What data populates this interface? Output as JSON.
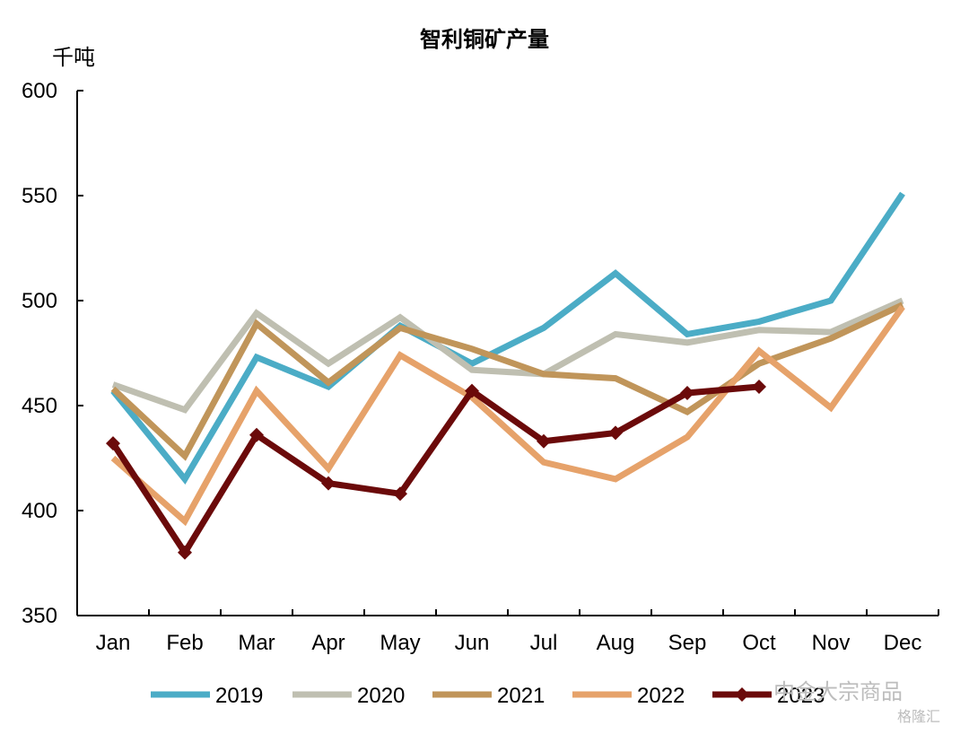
{
  "chart_data": {
    "type": "line",
    "title": "智利铜矿产量",
    "ylabel": "千吨",
    "xlabel": "",
    "ylim": [
      350,
      600
    ],
    "yticks": [
      350,
      400,
      450,
      500,
      550,
      600
    ],
    "categories": [
      "Jan",
      "Feb",
      "Mar",
      "Apr",
      "May",
      "Jun",
      "Jul",
      "Aug",
      "Sep",
      "Oct",
      "Nov",
      "Dec"
    ],
    "legend_position": "bottom",
    "grid": false,
    "series": [
      {
        "name": "2019",
        "color": "#4BACC6",
        "marker": "none",
        "values": [
          457,
          415,
          473,
          459,
          488,
          470,
          487,
          513,
          484,
          490,
          500,
          551
        ]
      },
      {
        "name": "2020",
        "color": "#BFBFB1",
        "marker": "none",
        "values": [
          460,
          448,
          494,
          470,
          492,
          467,
          465,
          484,
          480,
          486,
          485,
          500
        ]
      },
      {
        "name": "2021",
        "color": "#C0955A",
        "marker": "none",
        "values": [
          458,
          426,
          489,
          461,
          487,
          477,
          465,
          463,
          447,
          470,
          482,
          498
        ]
      },
      {
        "name": "2022",
        "color": "#E6A26A",
        "marker": "none",
        "values": [
          425,
          395,
          457,
          420,
          474,
          454,
          423,
          415,
          435,
          476,
          449,
          497
        ]
      },
      {
        "name": "2023",
        "color": "#6B0A0A",
        "marker": "diamond",
        "values": [
          432,
          380,
          436,
          413,
          408,
          457,
          433,
          437,
          456,
          459,
          null,
          null
        ]
      }
    ]
  },
  "watermark": {
    "text1": "中金大宗商品",
    "text2": "格隆汇"
  }
}
